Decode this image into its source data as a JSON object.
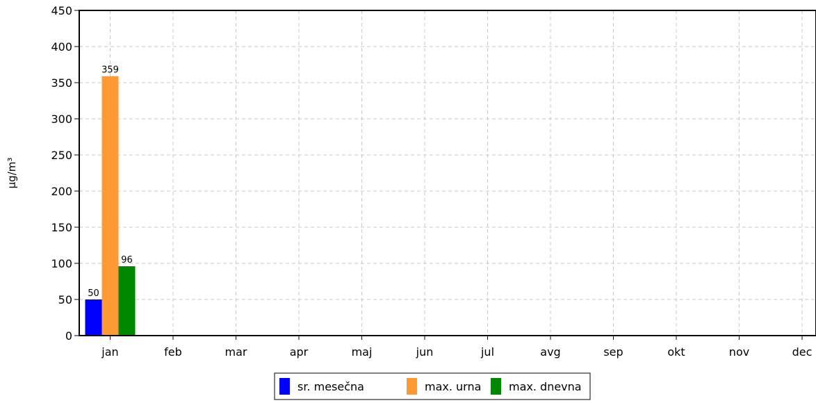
{
  "chart_data": {
    "type": "bar",
    "title": "",
    "xlabel": "",
    "ylabel": "µg/m³",
    "categories": [
      "jan",
      "feb",
      "mar",
      "apr",
      "maj",
      "jun",
      "jul",
      "avg",
      "sep",
      "okt",
      "nov",
      "dec"
    ],
    "series": [
      {
        "name": "sr. mesečna",
        "color": "#0000ff",
        "values": [
          50,
          null,
          null,
          null,
          null,
          null,
          null,
          null,
          null,
          null,
          null,
          null
        ]
      },
      {
        "name": "max. urna",
        "color": "#ff9933",
        "values": [
          359,
          null,
          null,
          null,
          null,
          null,
          null,
          null,
          null,
          null,
          null,
          null
        ]
      },
      {
        "name": "max. dnevna",
        "color": "#008800",
        "values": [
          96,
          null,
          null,
          null,
          null,
          null,
          null,
          null,
          null,
          null,
          null,
          null
        ]
      }
    ],
    "ylim": [
      0,
      450
    ],
    "yticks": [
      0,
      50,
      100,
      150,
      200,
      250,
      300,
      350,
      400,
      450
    ],
    "grid": true,
    "legend_position": "bottom-center",
    "show_data_labels": true
  }
}
